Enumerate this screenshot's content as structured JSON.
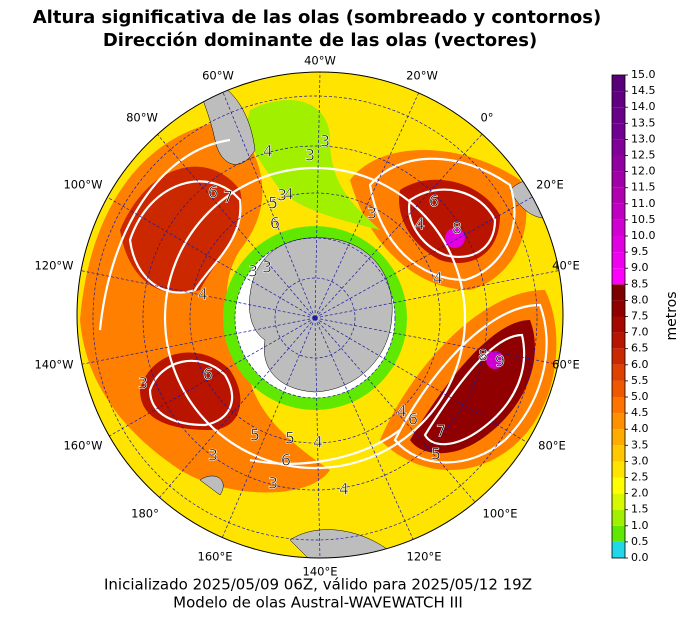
{
  "title": [
    "Altura significativa de las olas (sombreado y contornos)",
    "Dirección dominante de las olas (vectores)"
  ],
  "longitude_labels": [
    "40°W",
    "20°W",
    "0°",
    "20°E",
    "40°E",
    "60°E",
    "80°E",
    "100°E",
    "120°E",
    "140°E",
    "160°E",
    "180°",
    "160°W",
    "140°W",
    "120°W",
    "100°W",
    "80°W",
    "60°W"
  ],
  "contour_labels": [
    3,
    4,
    3,
    6,
    7,
    5,
    4,
    6,
    3,
    3,
    6,
    8,
    3,
    4,
    4,
    3,
    4,
    5,
    6,
    3,
    8,
    9,
    4,
    6,
    7,
    5,
    3,
    5,
    6,
    4,
    3,
    4
  ],
  "colorbar": {
    "label": "metros",
    "lim": [
      0,
      15
    ],
    "ticks": [
      {
        "value": 0,
        "label": "0.0"
      },
      {
        "value": 0.5,
        "label": "0.5"
      },
      {
        "value": 1,
        "label": "1.0"
      },
      {
        "value": 1.5,
        "label": "1.5"
      },
      {
        "value": 2,
        "label": "2.0"
      },
      {
        "value": 2.5,
        "label": "2.5"
      },
      {
        "value": 3,
        "label": "3.0"
      },
      {
        "value": 3.5,
        "label": "3.5"
      },
      {
        "value": 4,
        "label": "4.0"
      },
      {
        "value": 4.5,
        "label": "4.5"
      },
      {
        "value": 5,
        "label": "5.0"
      },
      {
        "value": 5.5,
        "label": "5.5"
      },
      {
        "value": 6,
        "label": "6.0"
      },
      {
        "value": 6.5,
        "label": "6.5"
      },
      {
        "value": 7,
        "label": "7.0"
      },
      {
        "value": 7.5,
        "label": "7.5"
      },
      {
        "value": 8,
        "label": "8.0"
      },
      {
        "value": 8.5,
        "label": "8.5"
      },
      {
        "value": 9,
        "label": "9.0"
      },
      {
        "value": 9.5,
        "label": "9.5"
      },
      {
        "value": 10,
        "label": "10.0"
      },
      {
        "value": 10.5,
        "label": "10.5"
      },
      {
        "value": 11,
        "label": "11.0"
      },
      {
        "value": 11.5,
        "label": "11.5"
      },
      {
        "value": 12,
        "label": "12.0"
      },
      {
        "value": 12.5,
        "label": "12.5"
      },
      {
        "value": 13,
        "label": "13.0"
      },
      {
        "value": 13.5,
        "label": "13.5"
      },
      {
        "value": 14,
        "label": "14.0"
      },
      {
        "value": 14.5,
        "label": "14.5"
      },
      {
        "value": 15,
        "label": "15.0"
      }
    ],
    "colors": [
      "#20d8e8",
      "#60e800",
      "#a0f000",
      "#d8f800",
      "#ffff00",
      "#ffe400",
      "#ffc800",
      "#ffac00",
      "#ff9000",
      "#ff7400",
      "#f05800",
      "#e04000",
      "#cc2800",
      "#b81400",
      "#a40800",
      "#900000",
      "#7c0000",
      "#ff00ff",
      "#f000f0",
      "#e000e0",
      "#d000d0",
      "#c000c0",
      "#b000b0",
      "#a000a8",
      "#9000a0",
      "#800098",
      "#700090",
      "#680088",
      "#600080",
      "#580078"
    ]
  },
  "footer": [
    "Inicializado 2025/05/09 06Z, válido para 2025/05/12 19Z",
    "Modelo de olas Austral-WAVEWATCH III"
  ]
}
